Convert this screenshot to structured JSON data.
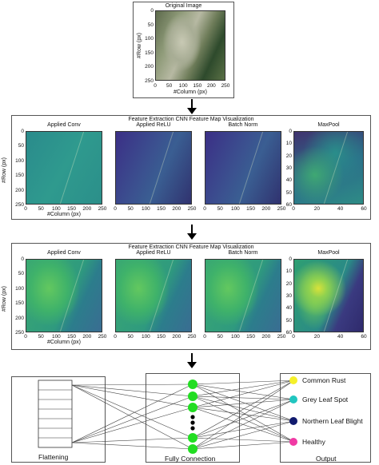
{
  "original": {
    "title": "Original Image",
    "y_label": "#Row (px)",
    "x_label": "#Column (px)",
    "y_ticks": [
      "0",
      "50",
      "100",
      "150",
      "200",
      "250"
    ],
    "x_ticks": [
      "0",
      "50",
      "100",
      "150",
      "200",
      "250"
    ]
  },
  "stage1": {
    "title": "Feature Extraction CNN Feature Map Visualization",
    "y_label": "#Row (px)",
    "panels": [
      {
        "title": "Applied Conv",
        "x_label": "#Column (px)",
        "x_ticks": [
          "0",
          "50",
          "100",
          "150",
          "200",
          "250"
        ],
        "y_ticks": [
          "0",
          "50",
          "100",
          "150",
          "200",
          "250"
        ]
      },
      {
        "title": "Applied ReLU",
        "x_ticks": [
          "0",
          "50",
          "100",
          "150",
          "200",
          "250"
        ]
      },
      {
        "title": "Batch Norm",
        "x_ticks": [
          "0",
          "50",
          "100",
          "150",
          "200",
          "250"
        ]
      },
      {
        "title": "MaxPool",
        "x_ticks": [
          "0",
          "20",
          "40",
          "60"
        ],
        "y_ticks": [
          "0",
          "10",
          "20",
          "30",
          "40",
          "50",
          "60"
        ]
      }
    ]
  },
  "stage2": {
    "title": "Feature Extraction CNN Feature Map Visualization",
    "y_label": "#Row (px)",
    "panels": [
      {
        "title": "Applied Conv",
        "x_label": "#Column (px)",
        "x_ticks": [
          "0",
          "50",
          "100",
          "150",
          "200",
          "250"
        ],
        "y_ticks": [
          "0",
          "50",
          "100",
          "150",
          "200",
          "250"
        ]
      },
      {
        "title": "Applied ReLU",
        "x_ticks": [
          "0",
          "50",
          "100",
          "150",
          "200",
          "250"
        ]
      },
      {
        "title": "Batch Norm",
        "x_ticks": [
          "0",
          "50",
          "100",
          "150",
          "200",
          "250"
        ]
      },
      {
        "title": "MaxPool",
        "x_ticks": [
          "0",
          "20",
          "40",
          "60"
        ],
        "y_ticks": [
          "0",
          "10",
          "20",
          "30",
          "40",
          "50",
          "60"
        ]
      }
    ]
  },
  "network": {
    "flattening_label": "Flattening",
    "fully_connection_label": "Fully Connection",
    "output_label": "Output",
    "outputs": [
      {
        "label": "Common Rust",
        "color": "#f5f02a"
      },
      {
        "label": "Grey Leaf Spot",
        "color": "#21c6c0"
      },
      {
        "label": "Northern Leaf Blight",
        "color": "#101a6e"
      },
      {
        "label": "Healthy",
        "color": "#f03aa4"
      }
    ],
    "node_color": "#22dd22"
  },
  "colors": {
    "map_dark": "#3b2f86",
    "map_mid": "#2a8b8c",
    "map_light": "#4fc46a",
    "map_yellow": "#d8e23a"
  }
}
